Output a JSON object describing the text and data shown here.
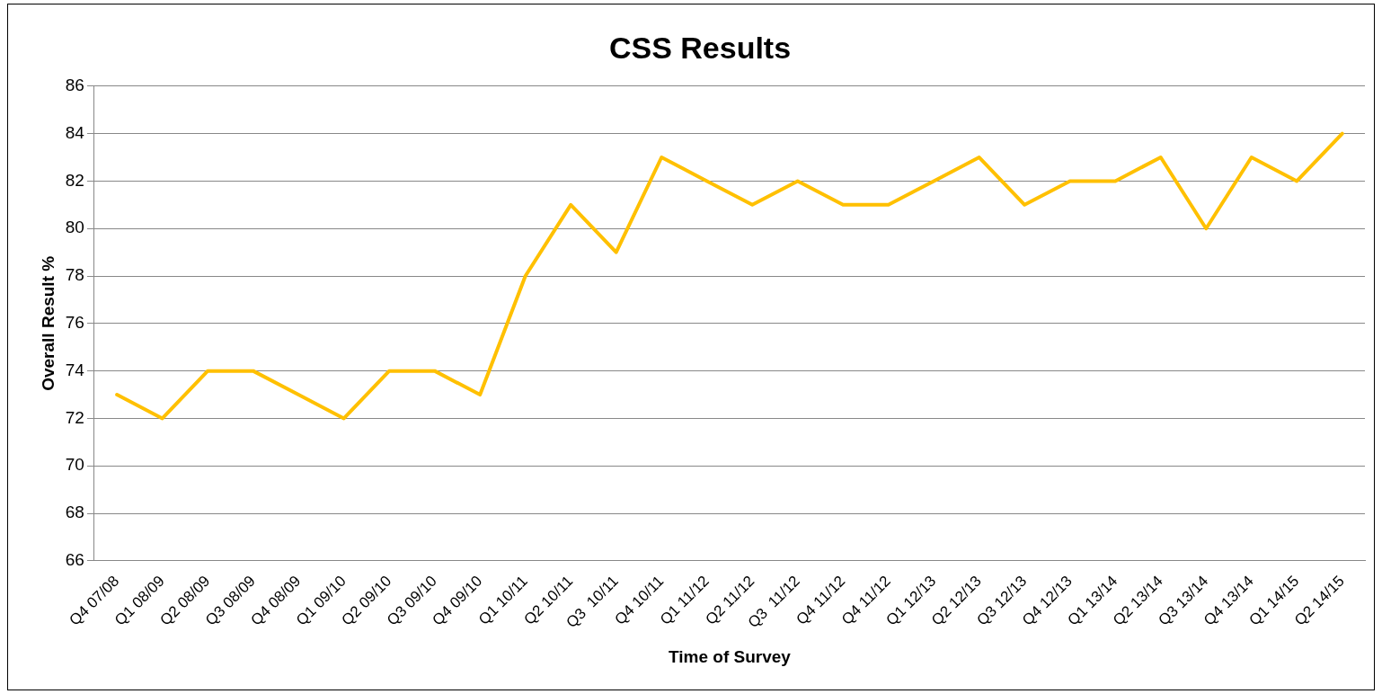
{
  "chart_data": {
    "type": "line",
    "title": "CSS Results",
    "xlabel": "Time of Survey",
    "ylabel": "Overall Result %",
    "categories": [
      "Q4 07/08",
      "Q1 08/09",
      "Q2 08/09",
      "Q3 08/09",
      "Q4 08/09",
      "Q1 09/10",
      "Q2 09/10",
      "Q3 09/10",
      "Q4 09/10",
      "Q1 10/11",
      "Q2 10/11",
      "Q3  10/11",
      "Q4 10/11",
      "Q1 11/12",
      "Q2 11/12",
      "Q3  11/12",
      "Q4 11/12",
      "Q4 11/12",
      "Q1 12/13",
      "Q2 12/13",
      "Q3 12/13",
      "Q4 12/13",
      "Q1 13/14",
      "Q2 13/14",
      "Q3 13/14",
      "Q4 13/14",
      "Q1 14/15",
      "Q2 14/15"
    ],
    "series": [
      {
        "color": "#ffc000",
        "values": [
          73,
          72,
          74,
          74,
          73,
          72,
          74,
          74,
          73,
          78,
          81,
          79,
          83,
          82,
          81,
          82,
          81,
          81,
          82,
          83,
          81,
          82,
          82,
          83,
          80,
          83,
          82,
          84
        ]
      }
    ],
    "ylim": [
      66,
      86
    ],
    "yticks": [
      66,
      68,
      70,
      72,
      74,
      76,
      78,
      80,
      82,
      84,
      86
    ],
    "grid": "y",
    "marker": "none",
    "line_style": "solid"
  }
}
